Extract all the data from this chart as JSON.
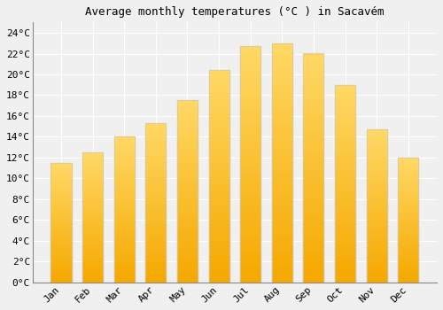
{
  "months": [
    "Jan",
    "Feb",
    "Mar",
    "Apr",
    "May",
    "Jun",
    "Jul",
    "Aug",
    "Sep",
    "Oct",
    "Nov",
    "Dec"
  ],
  "values": [
    11.5,
    12.5,
    14.0,
    15.3,
    17.5,
    20.4,
    22.7,
    23.0,
    22.0,
    19.0,
    14.7,
    12.0
  ],
  "bar_color_bottom": "#F5A800",
  "bar_color_top": "#FFD966",
  "bar_edge_color": "#C8C8C8",
  "title": "Average monthly temperatures (°C ) in Sacavém",
  "ylim": [
    0,
    25
  ],
  "yticks": [
    0,
    2,
    4,
    6,
    8,
    10,
    12,
    14,
    16,
    18,
    20,
    22,
    24
  ],
  "background_color": "#f0f0f0",
  "plot_bg_color": "#f0f0f0",
  "grid_color": "#ffffff",
  "title_fontsize": 9,
  "tick_fontsize": 8,
  "font_family": "monospace"
}
